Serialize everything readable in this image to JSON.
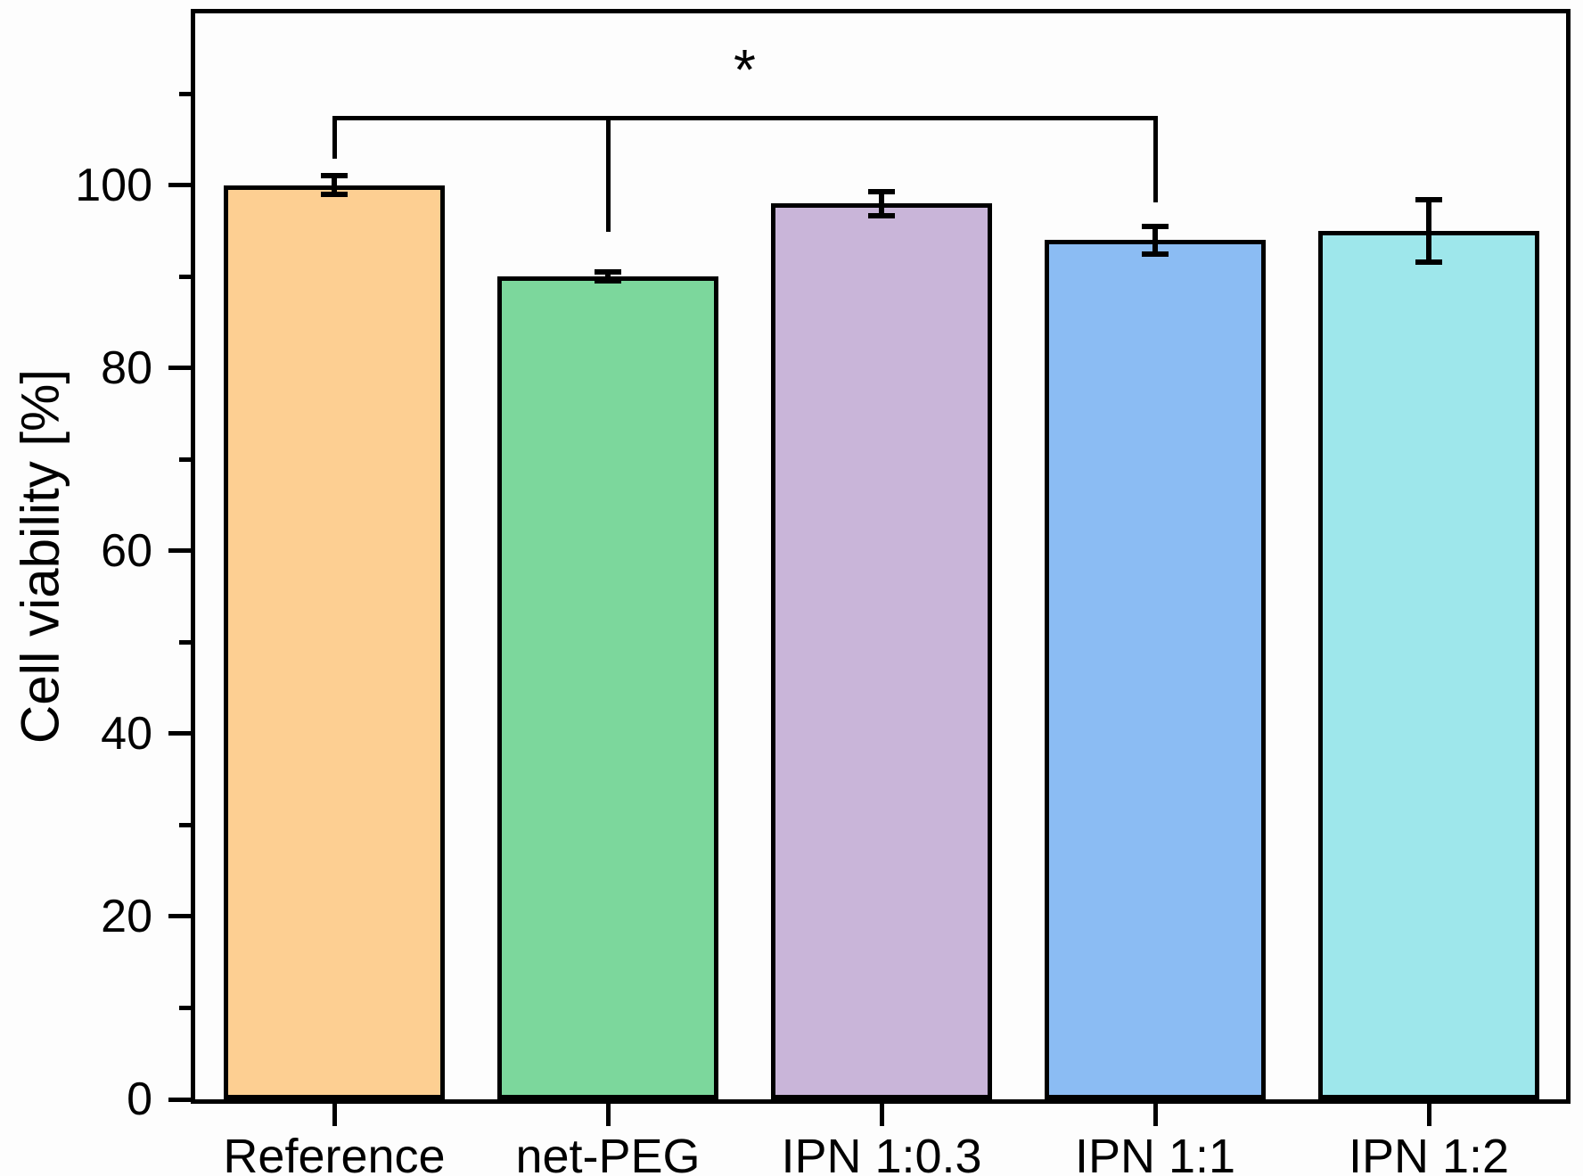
{
  "figure": {
    "background": "#fdfdfd",
    "axis_color": "#000000"
  },
  "chart_data": {
    "type": "bar",
    "title": "",
    "xlabel": "",
    "ylabel": "Cell viability [%]",
    "categories": [
      "Reference",
      "net-PEG",
      "IPN 1:0.3",
      "IPN 1:1",
      "IPN 1:2"
    ],
    "values": [
      100,
      90,
      98,
      94,
      95
    ],
    "errors": [
      1.0,
      0.5,
      1.3,
      1.5,
      3.4
    ],
    "bar_colors": [
      "#FDCF92",
      "#7CD79C",
      "#C9B5D9",
      "#8BBCF3",
      "#9EE7EB"
    ],
    "bar_edge_color": "#000000",
    "ylim": [
      0,
      118.8
    ],
    "yticks": [
      {
        "value": 0,
        "label": "0"
      },
      {
        "value": 20,
        "label": "20"
      },
      {
        "value": 40,
        "label": "40"
      },
      {
        "value": 60,
        "label": "60"
      },
      {
        "value": 80,
        "label": "80"
      },
      {
        "value": 100,
        "label": "100"
      }
    ],
    "minor_yticks": [
      10,
      30,
      50,
      70,
      90,
      110
    ],
    "grid": false,
    "legend_position": "none",
    "annotations": {
      "significance": {
        "label": "*",
        "connects": [
          "Reference",
          "net-PEG",
          "IPN 1:1"
        ]
      }
    }
  }
}
